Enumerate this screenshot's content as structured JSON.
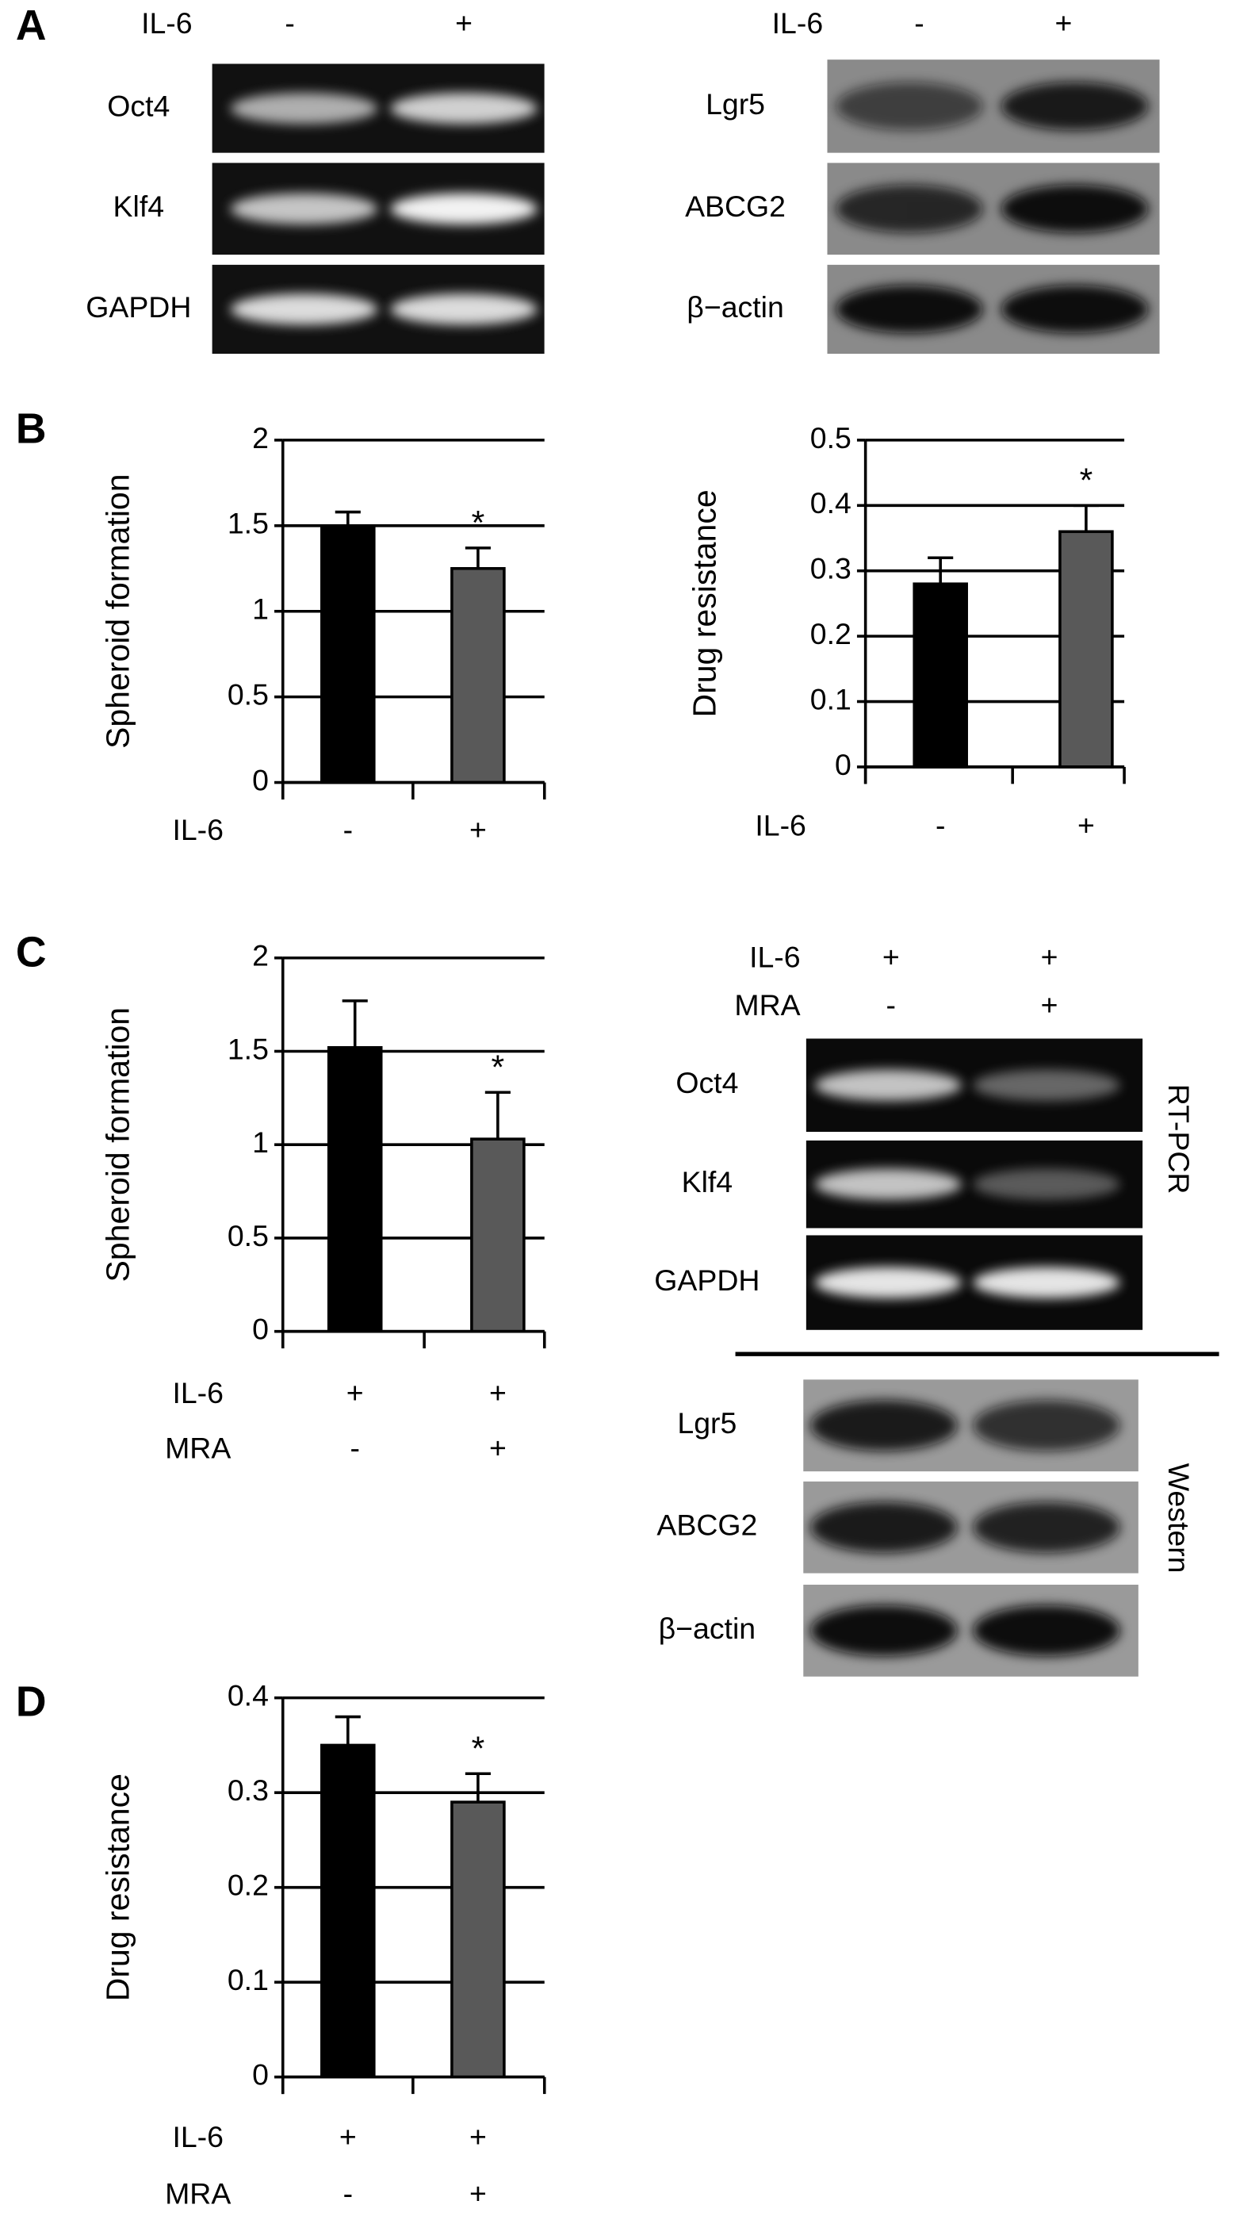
{
  "panel_labels": [
    "A",
    "B",
    "C",
    "D"
  ],
  "blots": [
    {
      "header_rows": [
        {
          "name": "IL-6",
          "labels": [
            "-",
            "+"
          ]
        }
      ],
      "rows": [
        "Oct4",
        "Klf4",
        "GAPDH"
      ]
    },
    {
      "header_rows": [
        {
          "name": "IL-6",
          "labels": [
            "-",
            "+"
          ]
        }
      ],
      "rows": [
        "Lgr5",
        "ABCG2",
        "β−actin"
      ]
    },
    {
      "header_rows": [
        {
          "name": "IL-6",
          "labels": [
            "+",
            "+"
          ]
        },
        {
          "name": "MRA",
          "labels": [
            "-",
            "+"
          ]
        }
      ],
      "rows": [
        "Oct4",
        "Klf4",
        "GAPDH"
      ],
      "method": "RT-PCR"
    },
    {
      "header_rows": [],
      "rows": [
        "Lgr5",
        "ABCG2",
        "β−actin"
      ],
      "method": "Western"
    }
  ],
  "chart_data": [
    {
      "type": "bar",
      "ylabel": "Spheroid formation",
      "category_rows": [
        {
          "name": "IL-6",
          "labels": [
            "-",
            "+"
          ]
        }
      ],
      "values": [
        1.5,
        1.25
      ],
      "errors": [
        0.08,
        0.12
      ],
      "significance": [
        null,
        "*"
      ],
      "colors": [
        "#000000",
        "#595959"
      ],
      "ylim": [
        0,
        2
      ],
      "yticks": [
        0,
        0.5,
        1,
        1.5,
        2
      ],
      "grid": true
    },
    {
      "type": "bar",
      "ylabel": "Drug resistance",
      "category_rows": [
        {
          "name": "IL-6",
          "labels": [
            "-",
            "+"
          ]
        }
      ],
      "values": [
        0.28,
        0.36
      ],
      "errors": [
        0.04,
        0.04
      ],
      "significance": [
        null,
        "*"
      ],
      "colors": [
        "#000000",
        "#595959"
      ],
      "ylim": [
        0,
        0.5
      ],
      "yticks": [
        0,
        0.1,
        0.2,
        0.3,
        0.4,
        0.5
      ],
      "grid": true
    },
    {
      "type": "bar",
      "ylabel": "Spheroid formation",
      "category_rows": [
        {
          "name": "IL-6",
          "labels": [
            "+",
            "+"
          ]
        },
        {
          "name": "MRA",
          "labels": [
            "-",
            "+"
          ]
        }
      ],
      "values": [
        1.52,
        1.03
      ],
      "errors": [
        0.25,
        0.25
      ],
      "significance": [
        null,
        "*"
      ],
      "colors": [
        "#000000",
        "#595959"
      ],
      "ylim": [
        0,
        2
      ],
      "yticks": [
        0,
        0.5,
        1,
        1.5,
        2
      ],
      "grid": true
    },
    {
      "type": "bar",
      "ylabel": "Drug resistance",
      "category_rows": [
        {
          "name": "IL-6",
          "labels": [
            "+",
            "+"
          ]
        },
        {
          "name": "MRA",
          "labels": [
            "-",
            "+"
          ]
        }
      ],
      "values": [
        0.35,
        0.29
      ],
      "errors": [
        0.03,
        0.03
      ],
      "significance": [
        null,
        "*"
      ],
      "colors": [
        "#000000",
        "#595959"
      ],
      "ylim": [
        0,
        0.4
      ],
      "yticks": [
        0,
        0.1,
        0.2,
        0.3,
        0.4
      ],
      "grid": true
    }
  ]
}
